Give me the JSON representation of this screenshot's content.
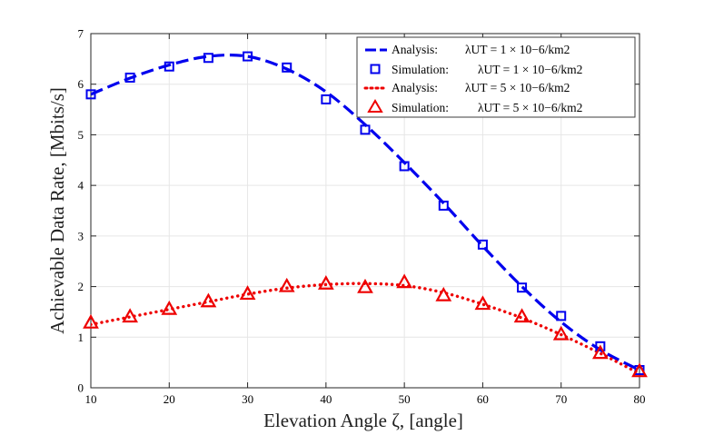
{
  "chart_data": {
    "type": "line",
    "title": "",
    "xlabel": "Elevation Angle ζ, [angle]",
    "ylabel": "Achievable Data Rate, [Mbits/s]",
    "xlim": [
      10,
      80
    ],
    "ylim": [
      0,
      7
    ],
    "xticks": [
      10,
      20,
      30,
      40,
      50,
      60,
      70,
      80
    ],
    "yticks": [
      0,
      1,
      2,
      3,
      4,
      5,
      6,
      7
    ],
    "grid": true,
    "legend_position": "top-right",
    "colors": {
      "blue": "#0000ee",
      "red": "#ee0000"
    },
    "series": [
      {
        "name": "Analysis: λUT = 1 × 10−6/km2",
        "legend_prefix": "Analysis:",
        "legend_math": "λUT = 1 × 10−6/km2",
        "style": "dash",
        "color": "#0000ee",
        "x": [
          10,
          15,
          20,
          25,
          30,
          35,
          40,
          45,
          50,
          55,
          60,
          65,
          70,
          75,
          80
        ],
        "values": [
          5.8,
          6.12,
          6.38,
          6.55,
          6.55,
          6.3,
          5.85,
          5.2,
          4.45,
          3.65,
          2.8,
          2.0,
          1.3,
          0.75,
          0.35
        ]
      },
      {
        "name": "Simulation: λUT = 1 × 10−6/km2",
        "legend_prefix": "Simulation:",
        "legend_math": "λUT = 1 × 10−6/km2",
        "style": "square",
        "color": "#0000ee",
        "x": [
          10,
          15,
          20,
          25,
          30,
          35,
          40,
          45,
          50,
          55,
          60,
          65,
          70,
          75,
          80
        ],
        "values": [
          5.8,
          6.13,
          6.35,
          6.52,
          6.55,
          6.33,
          5.7,
          5.1,
          4.38,
          3.6,
          2.83,
          1.98,
          1.42,
          0.82,
          0.35
        ]
      },
      {
        "name": "Analysis: λUT = 5 × 10−6/km2",
        "legend_prefix": "Analysis:",
        "legend_math": "λUT = 5 × 10−6/km2",
        "style": "dot",
        "color": "#ee0000",
        "x": [
          10,
          15,
          20,
          25,
          30,
          35,
          40,
          45,
          50,
          55,
          60,
          65,
          70,
          75,
          80
        ],
        "values": [
          1.25,
          1.4,
          1.55,
          1.7,
          1.85,
          1.97,
          2.04,
          2.06,
          2.02,
          1.88,
          1.65,
          1.38,
          1.05,
          0.68,
          0.28
        ]
      },
      {
        "name": "Simulation: λUT = 5 × 10−6/km2",
        "legend_prefix": "Simulation:",
        "legend_math": "λUT = 5 × 10−6/km2",
        "style": "triangle",
        "color": "#ee0000",
        "x": [
          10,
          15,
          20,
          25,
          30,
          35,
          40,
          45,
          50,
          55,
          60,
          65,
          70,
          75,
          80
        ],
        "values": [
          1.28,
          1.4,
          1.55,
          1.7,
          1.85,
          2.0,
          2.05,
          1.98,
          2.08,
          1.82,
          1.65,
          1.4,
          1.05,
          0.68,
          0.32
        ]
      }
    ]
  }
}
